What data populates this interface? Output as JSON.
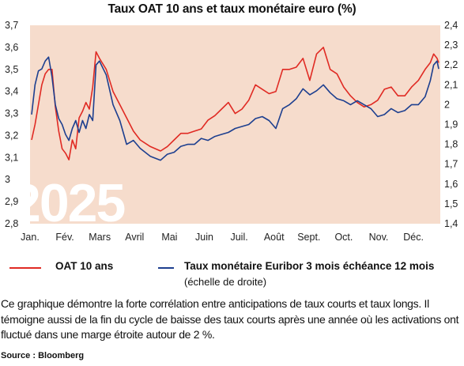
{
  "chart_data": {
    "type": "line",
    "title": "Taux OAT 10 ans et taux monétaire euro (%)",
    "watermark": "2025",
    "x_labels": [
      "Jan.",
      "Fév.",
      "Mars",
      "Avril",
      "Mai",
      "Juin",
      "Juil.",
      "Août",
      "Sept.",
      "Oct.",
      "Nov.",
      "Déc."
    ],
    "left_axis": {
      "ylim": [
        2.8,
        3.7
      ],
      "ticks": [
        "2,8",
        "2,9",
        "3",
        "3,1",
        "3,2",
        "3,3",
        "3,4",
        "3,5",
        "3,6",
        "3,7"
      ]
    },
    "right_axis": {
      "ylim": [
        1.4,
        2.4
      ],
      "ticks": [
        "1,4",
        "1,5",
        "1,6",
        "1,7",
        "1,8",
        "1,9",
        "2",
        "2,1",
        "2,2",
        "2,3",
        "2,4"
      ]
    },
    "grid": false,
    "colors": {
      "background": "#f6dccc",
      "oat": "#e02a23",
      "euribor": "#1d3f8f"
    },
    "series": [
      {
        "name": "OAT 10 ans",
        "axis": "left",
        "x": [
          0,
          0.1,
          0.2,
          0.3,
          0.4,
          0.5,
          0.6,
          0.7,
          0.8,
          0.9,
          1,
          1.1,
          1.2,
          1.3,
          1.4,
          1.5,
          1.6,
          1.7,
          1.8,
          1.9,
          2,
          2.2,
          2.4,
          2.6,
          2.8,
          3,
          3.2,
          3.5,
          3.8,
          4,
          4.2,
          4.4,
          4.6,
          4.8,
          5,
          5.2,
          5.4,
          5.6,
          5.8,
          6,
          6.2,
          6.4,
          6.6,
          6.8,
          7,
          7.2,
          7.4,
          7.6,
          7.8,
          8,
          8.2,
          8.4,
          8.6,
          8.8,
          9,
          9.2,
          9.4,
          9.6,
          9.8,
          10,
          10.2,
          10.4,
          10.6,
          10.8,
          11,
          11.2,
          11.4,
          11.6,
          11.75,
          11.85,
          11.95,
          12
        ],
        "values": [
          3.18,
          3.25,
          3.34,
          3.43,
          3.48,
          3.5,
          3.5,
          3.33,
          3.22,
          3.14,
          3.12,
          3.09,
          3.18,
          3.14,
          3.28,
          3.31,
          3.35,
          3.32,
          3.42,
          3.58,
          3.55,
          3.5,
          3.4,
          3.34,
          3.28,
          3.22,
          3.18,
          3.15,
          3.13,
          3.15,
          3.18,
          3.21,
          3.21,
          3.22,
          3.23,
          3.27,
          3.29,
          3.32,
          3.35,
          3.3,
          3.32,
          3.36,
          3.43,
          3.41,
          3.39,
          3.4,
          3.5,
          3.5,
          3.51,
          3.55,
          3.45,
          3.57,
          3.6,
          3.5,
          3.48,
          3.42,
          3.38,
          3.35,
          3.33,
          3.34,
          3.36,
          3.41,
          3.42,
          3.38,
          3.38,
          3.42,
          3.45,
          3.5,
          3.53,
          3.57,
          3.55,
          3.53
        ]
      },
      {
        "name": "Taux monétaire Euribor 3 mois échéance 12 mois",
        "axis": "right",
        "x": [
          0,
          0.1,
          0.2,
          0.3,
          0.4,
          0.5,
          0.6,
          0.7,
          0.8,
          0.9,
          1,
          1.1,
          1.2,
          1.3,
          1.4,
          1.5,
          1.6,
          1.7,
          1.8,
          1.9,
          2,
          2.2,
          2.4,
          2.6,
          2.8,
          3,
          3.2,
          3.5,
          3.8,
          4,
          4.2,
          4.4,
          4.6,
          4.8,
          5,
          5.2,
          5.4,
          5.6,
          5.8,
          6,
          6.2,
          6.4,
          6.6,
          6.8,
          7,
          7.2,
          7.4,
          7.6,
          7.8,
          8,
          8.2,
          8.4,
          8.6,
          8.8,
          9,
          9.2,
          9.4,
          9.6,
          9.8,
          10,
          10.2,
          10.4,
          10.6,
          10.8,
          11,
          11.2,
          11.4,
          11.6,
          11.75,
          11.85,
          11.95,
          12
        ],
        "values": [
          1.95,
          2.1,
          2.17,
          2.18,
          2.22,
          2.24,
          2.14,
          2.0,
          1.93,
          1.9,
          1.85,
          1.82,
          1.88,
          1.92,
          1.86,
          1.92,
          1.88,
          1.95,
          1.92,
          2.2,
          2.22,
          2.15,
          2.0,
          1.92,
          1.8,
          1.82,
          1.78,
          1.74,
          1.72,
          1.75,
          1.76,
          1.79,
          1.8,
          1.8,
          1.83,
          1.82,
          1.84,
          1.85,
          1.86,
          1.88,
          1.89,
          1.9,
          1.93,
          1.94,
          1.92,
          1.88,
          1.98,
          2.0,
          2.03,
          2.08,
          2.05,
          2.07,
          2.1,
          2.06,
          2.03,
          2.02,
          2.0,
          2.02,
          2.0,
          1.98,
          1.94,
          1.95,
          1.98,
          1.96,
          1.97,
          2.0,
          2.0,
          2.04,
          2.12,
          2.2,
          2.22,
          2.18
        ]
      }
    ]
  },
  "legend": {
    "oat_label": "OAT 10 ans",
    "euribor_label": "Taux monétaire Euribor 3 mois échéance 12 mois",
    "euribor_note": "(échelle de droite)"
  },
  "caption": "Ce graphique démontre la forte corrélation entre anticipations de taux courts et taux longs. Il témoigne aussi de la fin du cycle de baisse des taux courts après une année où les activations ont fluctué dans une marge étroite autour de 2 %.",
  "source": "Source : Bloomberg"
}
